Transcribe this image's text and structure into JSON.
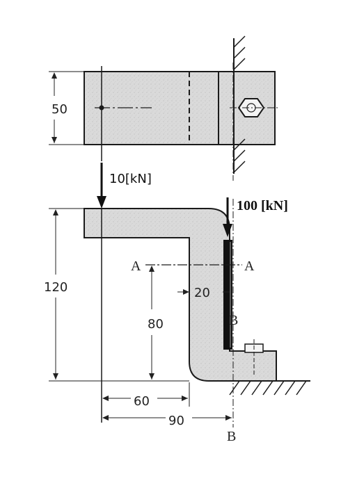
{
  "dimensions": {
    "width_50": "50",
    "height_120": "120",
    "height_80": "80",
    "gap_20": "20",
    "length_60": "60",
    "length_90": "90"
  },
  "forces": {
    "load_small": "10[kN]",
    "load_large": "100 [kN]"
  },
  "sections": {
    "a_left": "A",
    "a_right": "A",
    "b_mid": "B",
    "b_bottom": "B"
  },
  "colors": {
    "part_fill": "#d9d9d9",
    "line": "#1a1a1a",
    "bolt_dark": "#111111"
  }
}
